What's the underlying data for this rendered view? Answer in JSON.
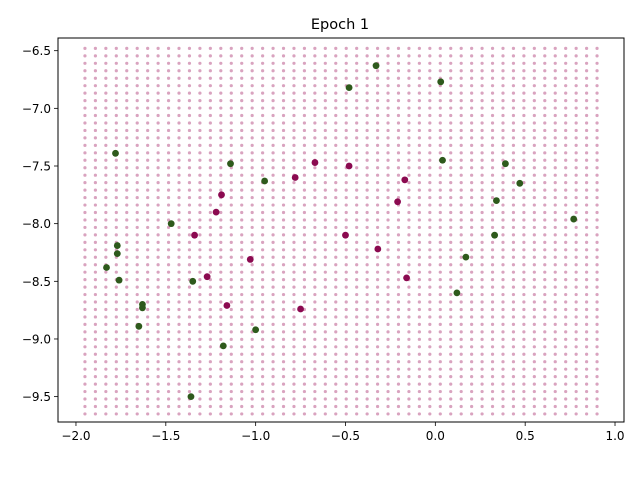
{
  "chart_data": {
    "type": "scatter",
    "title": "Epoch 1",
    "xlabel": "",
    "ylabel": "",
    "xlim": [
      -2.1,
      1.05
    ],
    "ylim": [
      -9.72,
      -6.39
    ],
    "xticks": [
      -2.0,
      -1.5,
      -1.0,
      -0.5,
      0.0,
      0.5,
      1.0
    ],
    "xtick_labels": [
      "−2.0",
      "−1.5",
      "−1.0",
      "−0.5",
      "0.0",
      "0.5",
      "1.0"
    ],
    "yticks": [
      -9.5,
      -9.0,
      -8.5,
      -8.0,
      -7.5,
      -7.0,
      -6.5
    ],
    "ytick_labels": [
      "−9.5",
      "−9.0",
      "−8.5",
      "−8.0",
      "−7.5",
      "−7.0",
      "−6.5"
    ],
    "grid": false,
    "background_grid": {
      "x_start": -1.95,
      "x_end": 0.9,
      "x_count": 50,
      "y_start": -9.65,
      "y_end": -6.48,
      "y_count": 50,
      "color": "#d9a3bf"
    },
    "series": [
      {
        "color": "#2e5a1c",
        "points": [
          [
            -0.33,
            -6.63
          ],
          [
            -0.48,
            -6.82
          ],
          [
            0.03,
            -6.77
          ],
          [
            -1.78,
            -7.39
          ],
          [
            -1.14,
            -7.48
          ],
          [
            -0.95,
            -7.63
          ],
          [
            0.04,
            -7.45
          ],
          [
            0.39,
            -7.48
          ],
          [
            0.47,
            -7.65
          ],
          [
            0.34,
            -7.8
          ],
          [
            -1.47,
            -8.0
          ],
          [
            0.33,
            -8.1
          ],
          [
            -1.77,
            -8.19
          ],
          [
            -1.77,
            -8.26
          ],
          [
            0.17,
            -8.29
          ],
          [
            -1.83,
            -8.38
          ],
          [
            -1.76,
            -8.49
          ],
          [
            -1.35,
            -8.5
          ],
          [
            0.12,
            -8.6
          ],
          [
            -1.63,
            -8.7
          ],
          [
            -1.63,
            -8.73
          ],
          [
            -1.65,
            -8.89
          ],
          [
            -1.0,
            -8.92
          ],
          [
            -1.18,
            -9.06
          ],
          [
            -1.36,
            -9.5
          ],
          [
            0.77,
            -7.96
          ]
        ]
      },
      {
        "color": "#8b0a50",
        "points": [
          [
            -0.67,
            -7.47
          ],
          [
            -0.48,
            -7.5
          ],
          [
            -0.78,
            -7.6
          ],
          [
            -0.17,
            -7.62
          ],
          [
            -1.19,
            -7.75
          ],
          [
            -0.21,
            -7.81
          ],
          [
            -1.22,
            -7.9
          ],
          [
            -1.34,
            -8.1
          ],
          [
            -0.5,
            -8.1
          ],
          [
            -0.32,
            -8.22
          ],
          [
            -1.03,
            -8.31
          ],
          [
            -1.27,
            -8.46
          ],
          [
            -0.16,
            -8.47
          ],
          [
            -1.16,
            -8.71
          ],
          [
            -0.75,
            -8.74
          ]
        ]
      }
    ]
  }
}
